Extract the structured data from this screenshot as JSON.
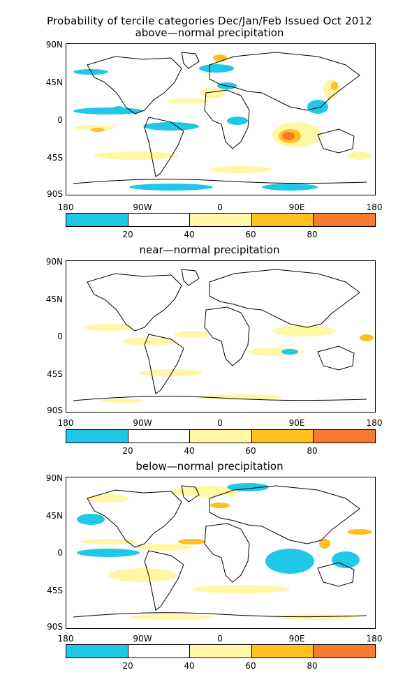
{
  "title": "Probability of tercile categories Dec/Jan/Feb Issued Oct 2012",
  "panels": [
    {
      "title": "above—normal precipitation"
    },
    {
      "title": "near—normal precipitation"
    },
    {
      "title": "below—normal precipitation"
    }
  ],
  "y_ticks": [
    "90N",
    "45N",
    "0",
    "45S",
    "90S"
  ],
  "x_ticks": [
    "180",
    "90W",
    "0",
    "90E",
    "180"
  ],
  "colorbar": {
    "labels": [
      "20",
      "40",
      "60",
      "80"
    ],
    "colors": [
      "#1ec8e6",
      "#ffffff",
      "#fff7a6",
      "#ffbf1f",
      "#f57a32"
    ]
  },
  "colors": {
    "land_outline": "#000000",
    "pale_yellow": "#fff7a6",
    "orange": "#ffbf1f",
    "deep_orange": "#f57a32",
    "cyan": "#1ec8e6"
  }
}
